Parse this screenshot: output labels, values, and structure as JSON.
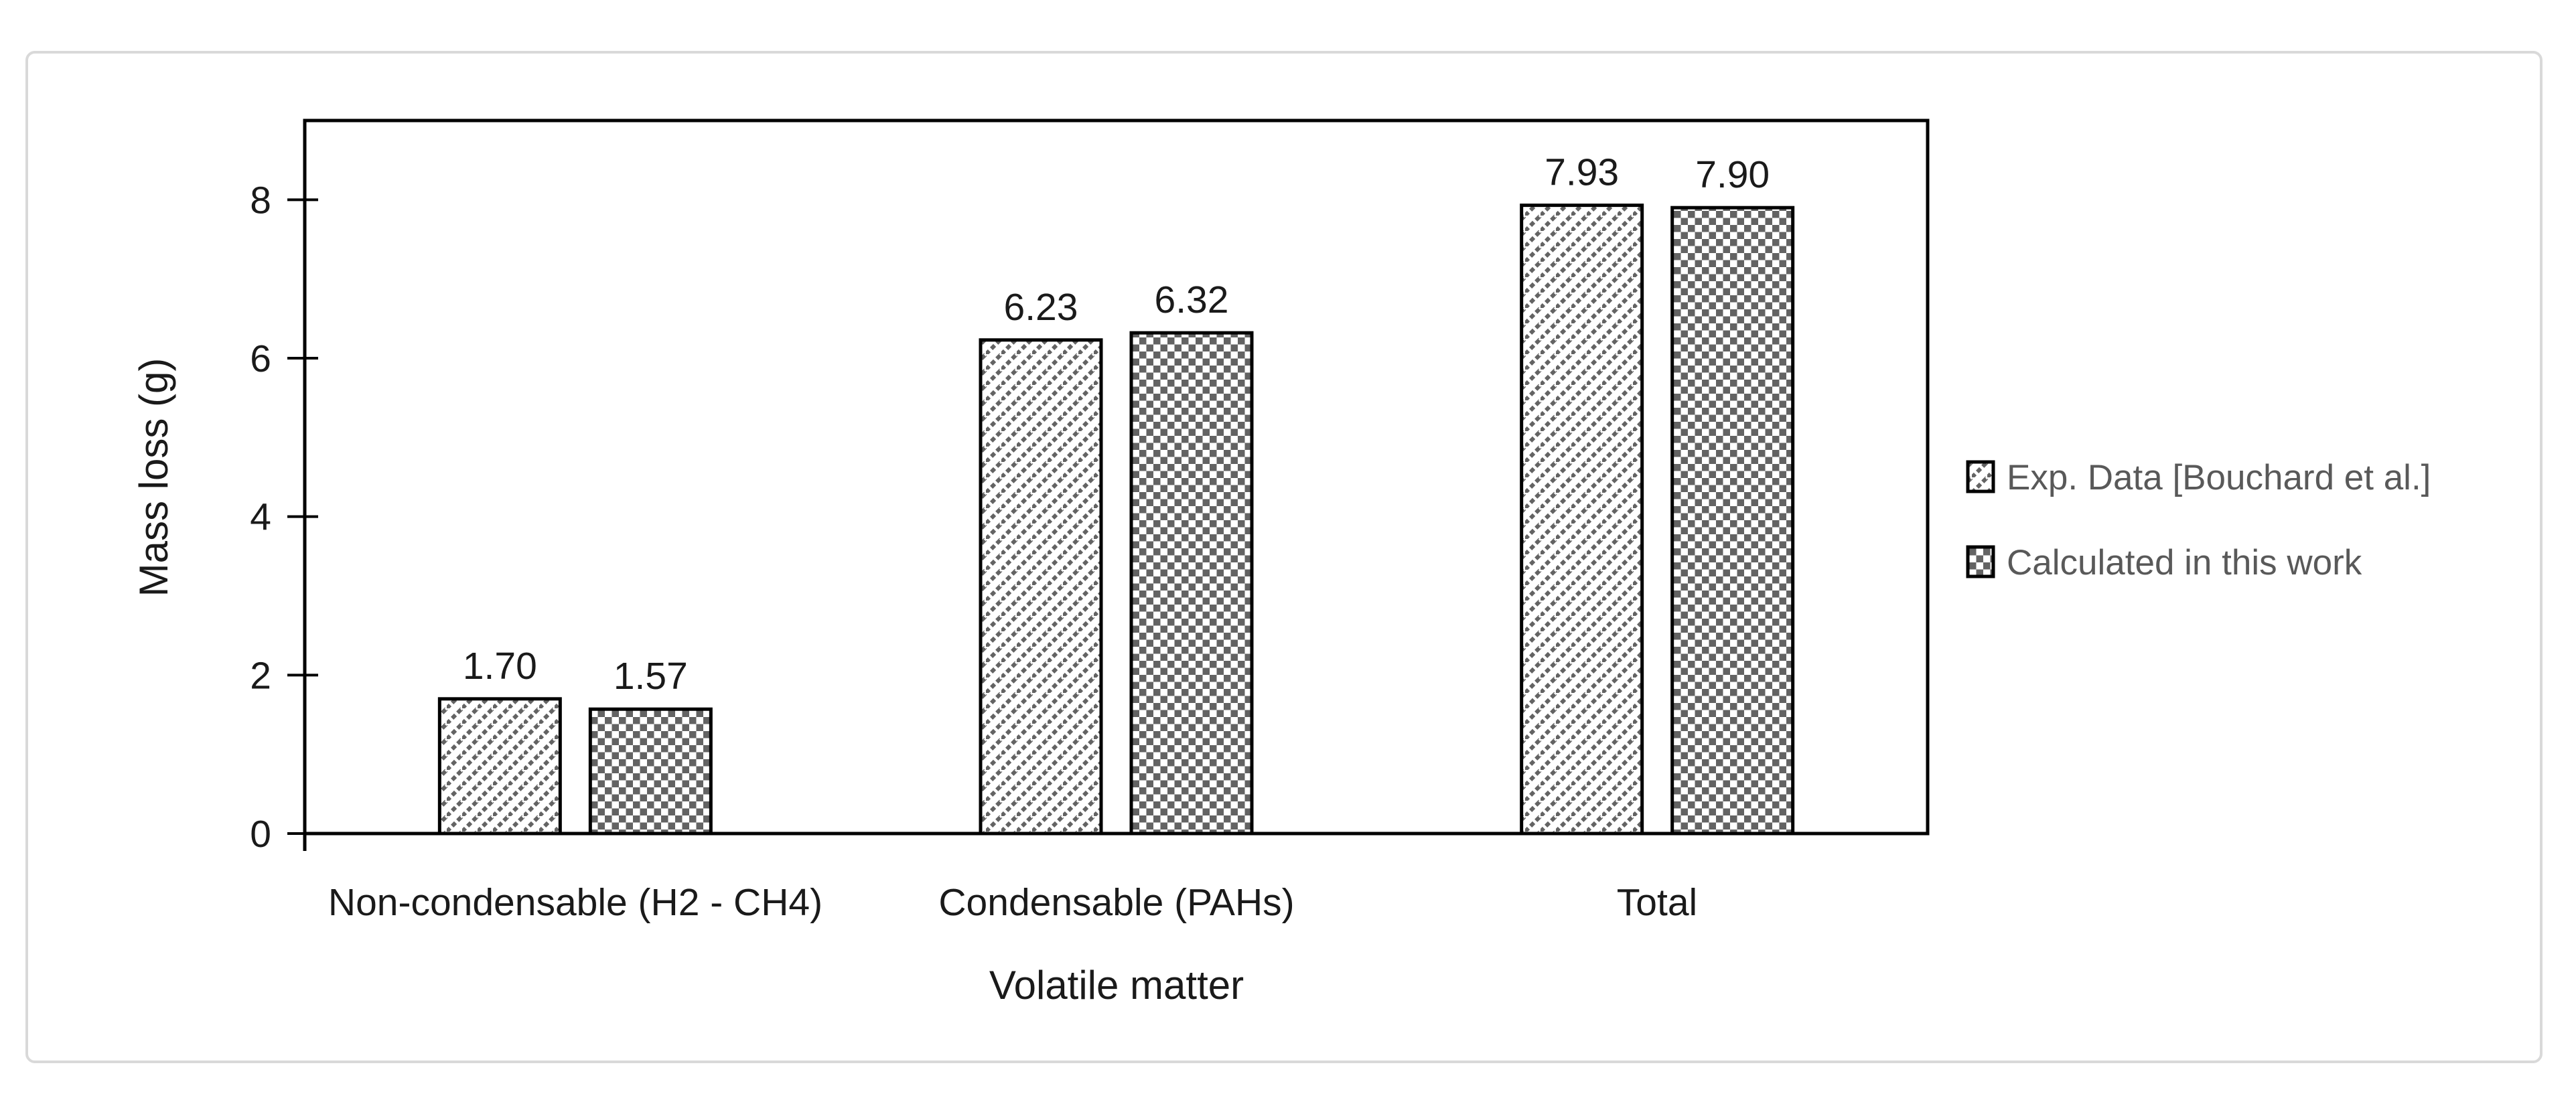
{
  "chart_data": {
    "type": "bar",
    "title": "",
    "categories": [
      "Non-condensable (H2 - CH4)",
      "Condensable (PAHs)",
      "Total"
    ],
    "series": [
      {
        "name": "Exp. Data [Bouchard et al.]",
        "pattern": "diagonal-hatch",
        "values": [
          1.7,
          6.23,
          7.93
        ],
        "labels": [
          "1.70",
          "6.23",
          "7.93"
        ]
      },
      {
        "name": "Calculated in this work",
        "pattern": "checkerboard",
        "values": [
          1.57,
          6.32,
          7.9
        ],
        "labels": [
          "1.57",
          "6.32",
          "7.90"
        ]
      }
    ],
    "xlabel": "Volatile matter",
    "ylabel": "Mass loss (g)",
    "ylim": [
      0,
      9
    ],
    "yticks": [
      0,
      2,
      4,
      6,
      8
    ],
    "grid": false,
    "legend_position": "right",
    "colors": {
      "background": "#ffffff",
      "frame_border": "#d9d9d9",
      "axis": "#000000",
      "text": "#1a1a1a",
      "legend_text": "#595959",
      "pattern_ink": "#636363"
    }
  }
}
